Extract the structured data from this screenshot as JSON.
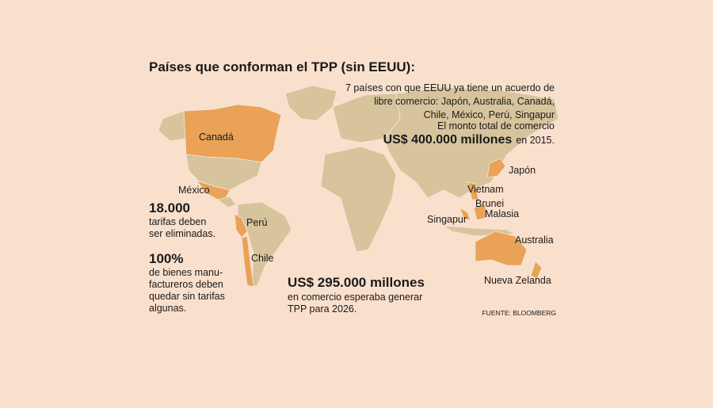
{
  "header": {
    "title": "Países que conforman el TPP (sin EEUU):"
  },
  "intro": {
    "lines": [
      "7 países con que EEUU ya tiene un acuerdo de",
      "libre comercio: Japón, Australia, Canadá,",
      "Chile, México, Perú, Singapur",
      "El monto total de comercio"
    ],
    "highlight": "US$ 400.000 millones",
    "suffix": "en 2015."
  },
  "countries": [
    "Canadá",
    "México",
    "Perú",
    "Chile",
    "Japón",
    "Vietnam",
    "Brunei",
    "Malasia",
    "Singapur",
    "Australia",
    "Nueva Zelanda"
  ],
  "stats": [
    {
      "figure": "18.000",
      "lines": [
        "tarifas deben",
        "ser eliminadas."
      ]
    },
    {
      "figure": "100%",
      "lines": [
        "de bienes manu-",
        "factureros deben",
        "quedar sin tarifas",
        "algunas."
      ]
    },
    {
      "figure": "US$ 295.000 millones",
      "lines": [
        "en comercio esperaba generar",
        "TPP para 2026."
      ]
    }
  ],
  "source": "FUENTE: BLOOMBERG"
}
